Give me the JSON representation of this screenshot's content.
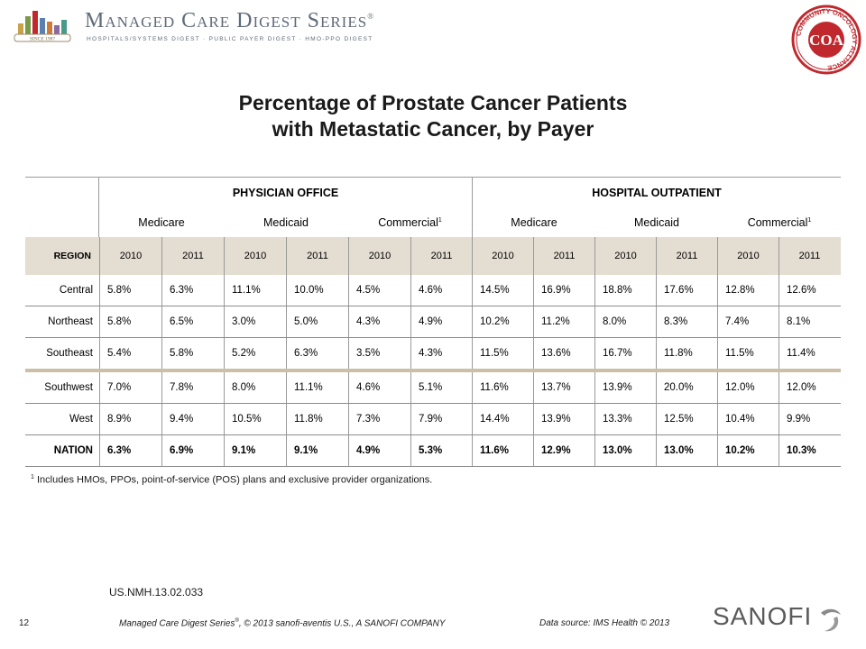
{
  "header": {
    "logo_title": "Managed Care Digest Series",
    "logo_reg": "®",
    "logo_subtitle": "HOSPITALS/SYSTEMS DIGEST · PUBLIC PAYER DIGEST · HMO-PPO DIGEST",
    "logo_since": "SINCE 1987",
    "seal_text": "COMMUNITY ONCOLOGY ALLIANCE",
    "seal_initials": "COA",
    "colors": {
      "seal_red": "#c0282d",
      "logo_gray": "#5f6b7a"
    }
  },
  "title_line1": "Percentage of Prostate Cancer Patients",
  "title_line2": "with Metastatic Cancer, by Payer",
  "table": {
    "groups": [
      "PHYSICIAN OFFICE",
      "HOSPITAL OUTPATIENT"
    ],
    "payers": [
      "Medicare",
      "Medicaid",
      "Commercial",
      "Medicare",
      "Medicaid",
      "Commercial"
    ],
    "payer_sup": "1",
    "region_header": "REGION",
    "years": [
      "2010",
      "2011",
      "2010",
      "2011",
      "2010",
      "2011",
      "2010",
      "2011",
      "2010",
      "2011",
      "2010",
      "2011"
    ],
    "rows": [
      {
        "region": "Central",
        "values": [
          "5.8%",
          "6.3%",
          "11.1%",
          "10.0%",
          "4.5%",
          "4.6%",
          "14.5%",
          "16.9%",
          "18.8%",
          "17.6%",
          "12.8%",
          "12.6%"
        ]
      },
      {
        "region": "Northeast",
        "values": [
          "5.8%",
          "6.5%",
          "3.0%",
          "5.0%",
          "4.3%",
          "4.9%",
          "10.2%",
          "11.2%",
          "8.0%",
          "8.3%",
          "7.4%",
          "8.1%"
        ]
      },
      {
        "region": "Southeast",
        "values": [
          "5.4%",
          "5.8%",
          "5.2%",
          "6.3%",
          "3.5%",
          "4.3%",
          "11.5%",
          "13.6%",
          "16.7%",
          "11.8%",
          "11.5%",
          "11.4%"
        ]
      },
      {
        "region": "Southwest",
        "values": [
          "7.0%",
          "7.8%",
          "8.0%",
          "11.1%",
          "4.6%",
          "5.1%",
          "11.6%",
          "13.7%",
          "13.9%",
          "20.0%",
          "12.0%",
          "12.0%"
        ]
      },
      {
        "region": "West",
        "values": [
          "8.9%",
          "9.4%",
          "10.5%",
          "11.8%",
          "7.3%",
          "7.9%",
          "14.4%",
          "13.9%",
          "13.3%",
          "12.5%",
          "10.4%",
          "9.9%"
        ]
      },
      {
        "region": "NATION",
        "values": [
          "6.3%",
          "6.9%",
          "9.1%",
          "9.1%",
          "4.9%",
          "5.3%",
          "11.6%",
          "12.9%",
          "13.0%",
          "13.0%",
          "10.2%",
          "10.3%"
        ]
      }
    ],
    "colors": {
      "year_band": "#e4ddd2",
      "separator": "#cbbfa8",
      "rule": "#9a9a9a"
    }
  },
  "footnote_sup": "1",
  "footnote": "Includes HMOs, PPOs, point-of-service (POS) plans and exclusive provider organizations.",
  "doc_code": "US.NMH.13.02.033",
  "footer": {
    "page_number": "12",
    "copyright_pre": "Managed Care Digest Series",
    "copyright_reg": "®",
    "copyright_post": ", © 2013 sanofi-aventis U.S., A SANOFI COMPANY",
    "data_source": "Data source:  IMS Health © 2013",
    "brand": "SANOFI",
    "brand_color": "#5b5b5b"
  }
}
